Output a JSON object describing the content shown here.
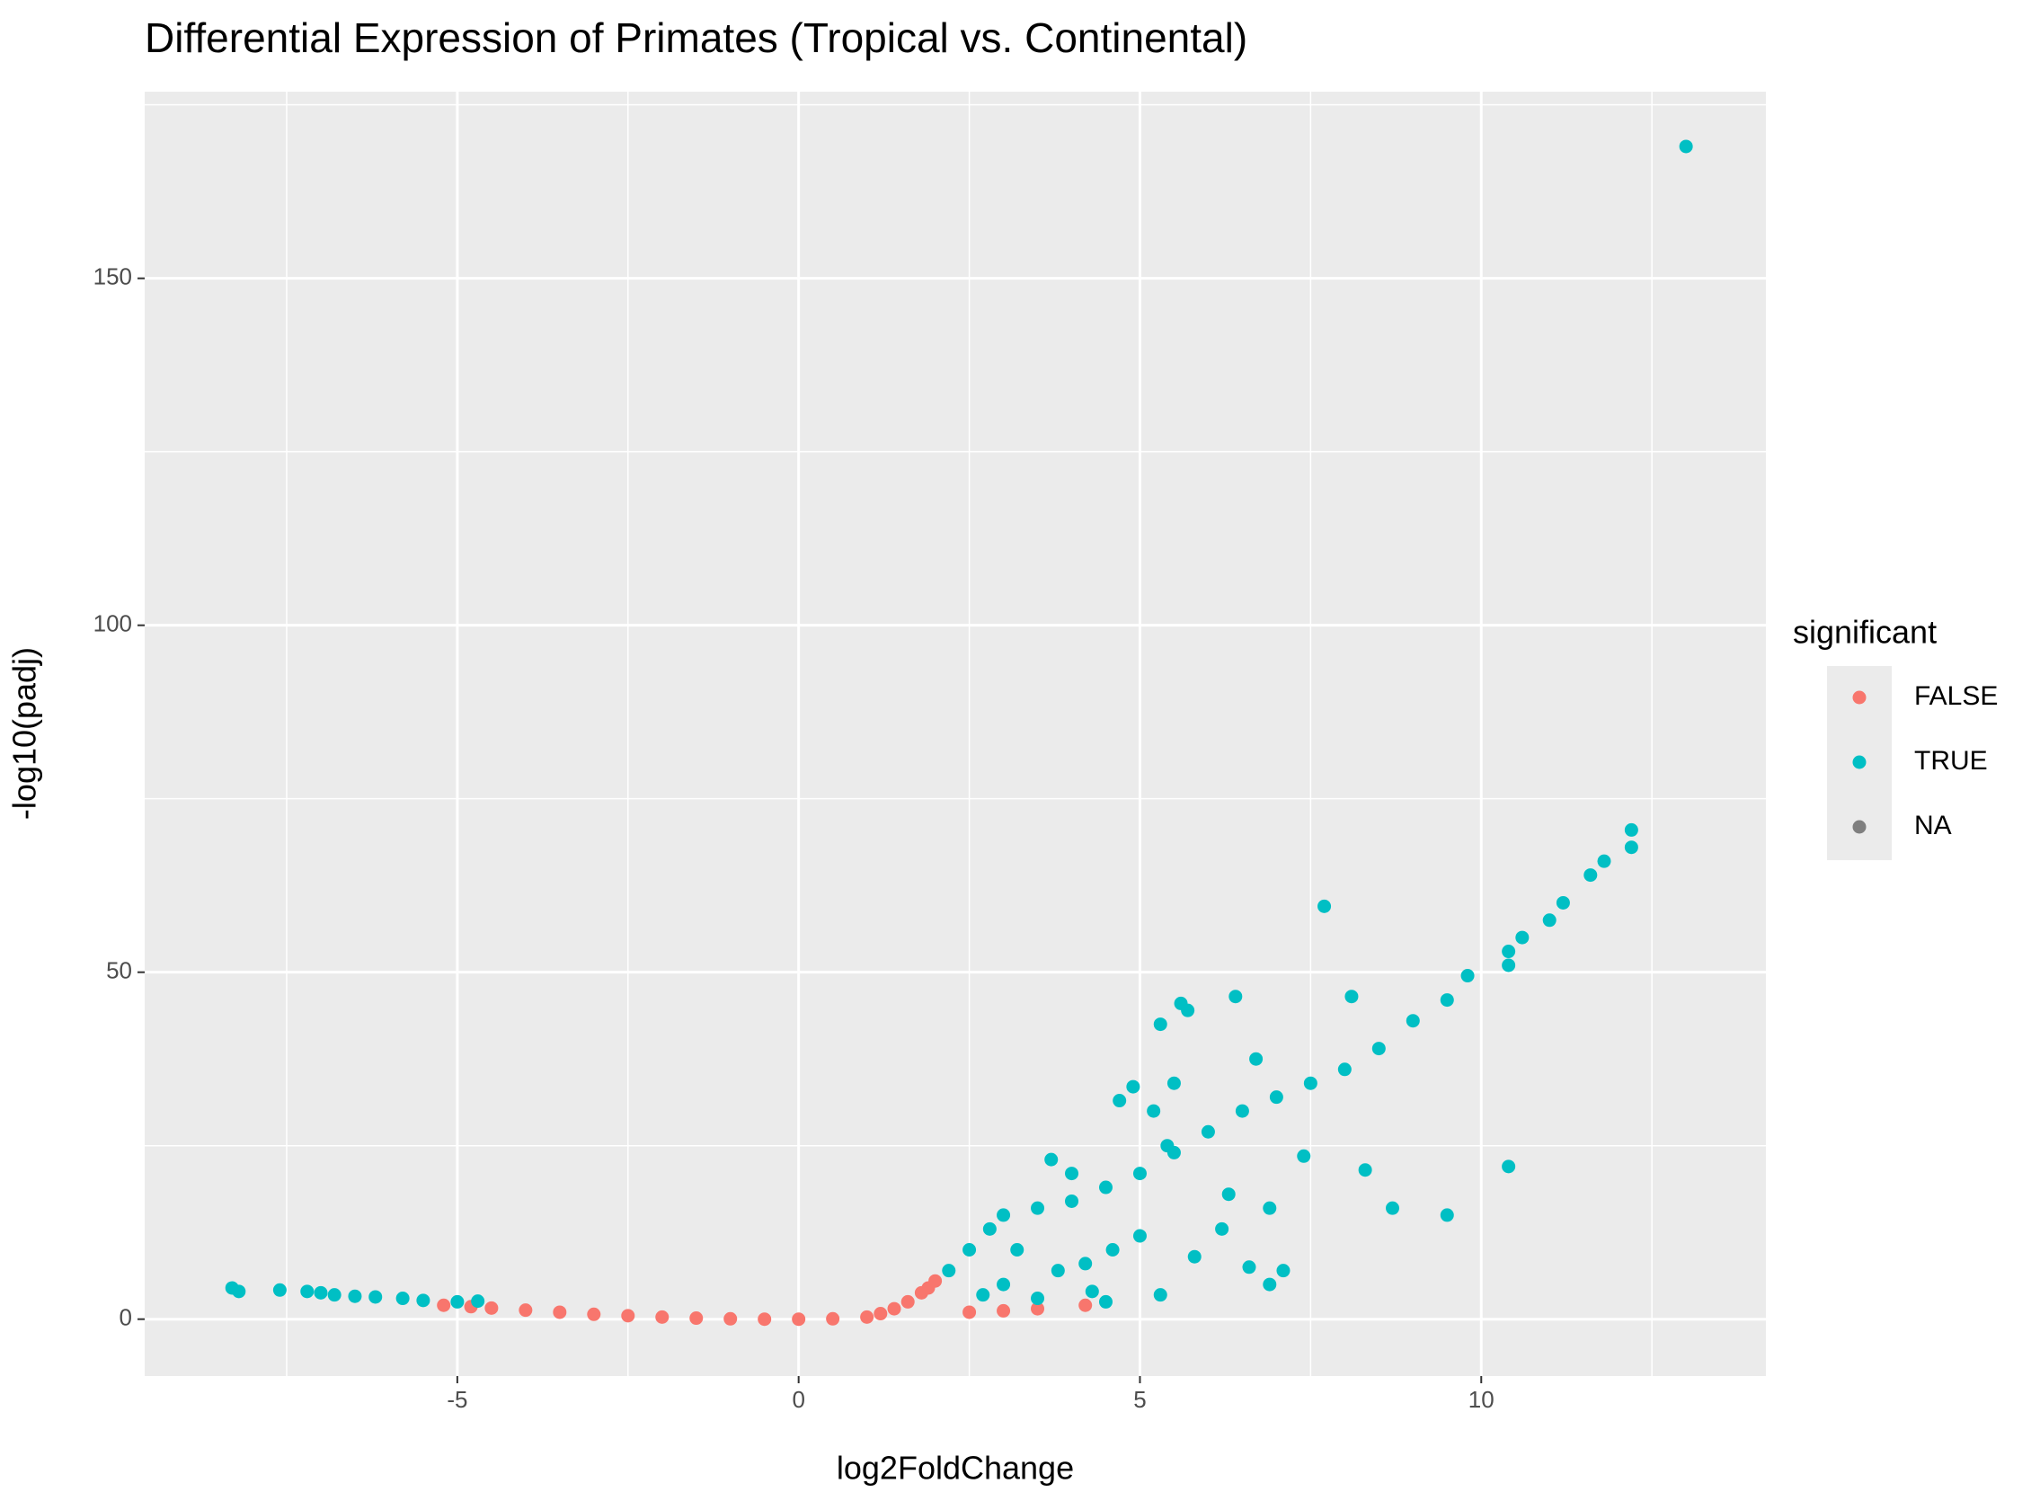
{
  "chart_data": {
    "type": "scatter",
    "title": "Differential Expression of Primates (Tropical vs. Continental)",
    "x_label": "log2FoldChange",
    "y_label": "-log10(padj)",
    "legend_title": "significant",
    "legend_position": "right",
    "xlim": [
      -9.58,
      14.17
    ],
    "ylim": [
      -8.2,
      176.9
    ],
    "xticks": [
      -5,
      0,
      5,
      10
    ],
    "yticks": [
      0,
      50,
      100,
      150
    ],
    "x_minor_grid": [
      -7.5,
      -2.5,
      2.5,
      7.5,
      12.5
    ],
    "y_minor_grid": [
      25,
      75,
      125,
      175
    ],
    "grid": true,
    "series": [
      {
        "name": "FALSE",
        "color": "#F8766D",
        "x": [
          -5.2,
          -4.8,
          -4.5,
          -4,
          -3.5,
          -3,
          -2.5,
          -2,
          -1.5,
          -1,
          -0.5,
          0,
          0.5,
          1,
          1.2,
          1.4,
          1.6,
          1.8,
          1.9,
          2.0,
          2.5,
          3,
          3.5,
          4.2
        ],
        "y": [
          2,
          1.8,
          1.6,
          1.3,
          1.0,
          0.7,
          0.5,
          0.3,
          0.15,
          0.05,
          0,
          0,
          0.05,
          0.3,
          0.8,
          1.5,
          2.5,
          3.8,
          4.5,
          5.5,
          1,
          1.2,
          1.5,
          2
        ]
      },
      {
        "name": "TRUE",
        "color": "#00BFC4",
        "x": [
          -8.3,
          -8.2,
          -7.6,
          -7.2,
          -7,
          -6.8,
          -6.5,
          -6.2,
          -5.8,
          -5.5,
          -5.0,
          -4.7,
          2.2,
          2.5,
          2.8,
          3,
          3.5,
          4,
          4.5,
          5,
          5.5,
          6,
          6.5,
          7,
          7.5,
          8,
          8.5,
          9,
          9.5,
          9.8,
          10.4,
          10.4,
          10.6,
          11,
          11.2,
          11.6,
          11.8,
          12.2,
          12.2,
          13.0,
          4.7,
          4.9,
          5.2,
          5.3,
          5.6,
          5.7,
          6.4,
          7.7,
          8.1,
          7.4,
          8.3,
          8.7,
          9.5,
          10.4,
          6.9,
          6.6,
          6.9,
          7.1,
          5.3,
          4.5,
          3.5,
          3,
          2.7,
          3.2,
          3.8,
          4.2,
          4.3,
          5.0,
          5.8,
          6.2,
          5.4,
          3.7,
          4.0,
          6.7,
          5.5,
          6.3,
          4.6
        ],
        "y": [
          4.5,
          4,
          4.2,
          4,
          3.8,
          3.5,
          3.3,
          3.2,
          3,
          2.7,
          2.5,
          2.6,
          7,
          10,
          13,
          15,
          16,
          17,
          19,
          21,
          24,
          27,
          30,
          32,
          34,
          36,
          39,
          43,
          46,
          49.5,
          51,
          53,
          55,
          57.5,
          60,
          64,
          66,
          68,
          70.5,
          169,
          31.5,
          33.5,
          30,
          42.5,
          45.5,
          44.5,
          46.5,
          59.5,
          46.5,
          23.5,
          21.5,
          16,
          15,
          22,
          16,
          7.5,
          5,
          7,
          3.5,
          2.5,
          3,
          5,
          3.5,
          10,
          7,
          8,
          4,
          12,
          9,
          13,
          25,
          23,
          21,
          37.5,
          34,
          18,
          10
        ]
      },
      {
        "name": "NA",
        "color": "#7F7F7F",
        "x": [],
        "y": []
      }
    ]
  }
}
